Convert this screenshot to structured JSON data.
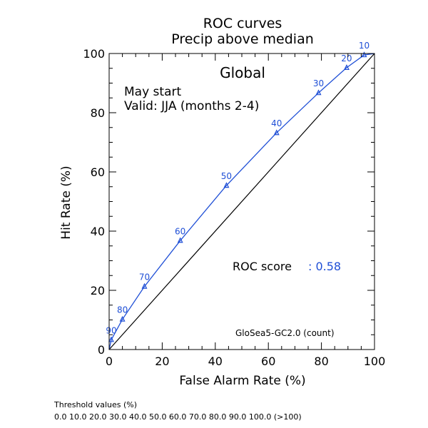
{
  "chart_data": {
    "type": "line",
    "title": "ROC curves",
    "subtitle": "Precip above median",
    "xlabel": "False Alarm Rate (%)",
    "ylabel": "Hit Rate (%)",
    "xlim": [
      0,
      100
    ],
    "ylim": [
      0,
      100
    ],
    "xticks": [
      "0",
      "20",
      "40",
      "60",
      "80",
      "100"
    ],
    "yticks": [
      "0",
      "20",
      "40",
      "60",
      "80",
      "100"
    ],
    "grid": false,
    "region": "Global",
    "start_text": "May start",
    "valid_text": "Valid: JJA (months 2-4)",
    "score_label": "ROC score",
    "score_value": ": 0.58",
    "model_label": "GloSea5-GC2.0 (count)",
    "line_color": "#1f4fd6",
    "diagonal_color": "#000000",
    "series": [
      {
        "points": [
          {
            "x": 0,
            "y": 0,
            "label": ""
          },
          {
            "x": 0.8,
            "y": 3.3,
            "label": "90"
          },
          {
            "x": 5.0,
            "y": 10.2,
            "label": "80"
          },
          {
            "x": 13.3,
            "y": 21.3,
            "label": "70"
          },
          {
            "x": 26.8,
            "y": 36.8,
            "label": "60"
          },
          {
            "x": 44.2,
            "y": 55.4,
            "label": "50"
          },
          {
            "x": 63.1,
            "y": 73.2,
            "label": "40"
          },
          {
            "x": 78.9,
            "y": 86.7,
            "label": "30"
          },
          {
            "x": 89.5,
            "y": 95.2,
            "label": "20"
          },
          {
            "x": 96.1,
            "y": 99.5,
            "label": "10"
          },
          {
            "x": 100,
            "y": 100,
            "label": ""
          }
        ]
      }
    ]
  },
  "footer": {
    "threshold_title": "Threshold values (%)",
    "threshold_values": "0.0 10.0 20.0 30.0 40.0 50.0 60.0 70.0 80.0 90.0 100.0 (>100)"
  }
}
